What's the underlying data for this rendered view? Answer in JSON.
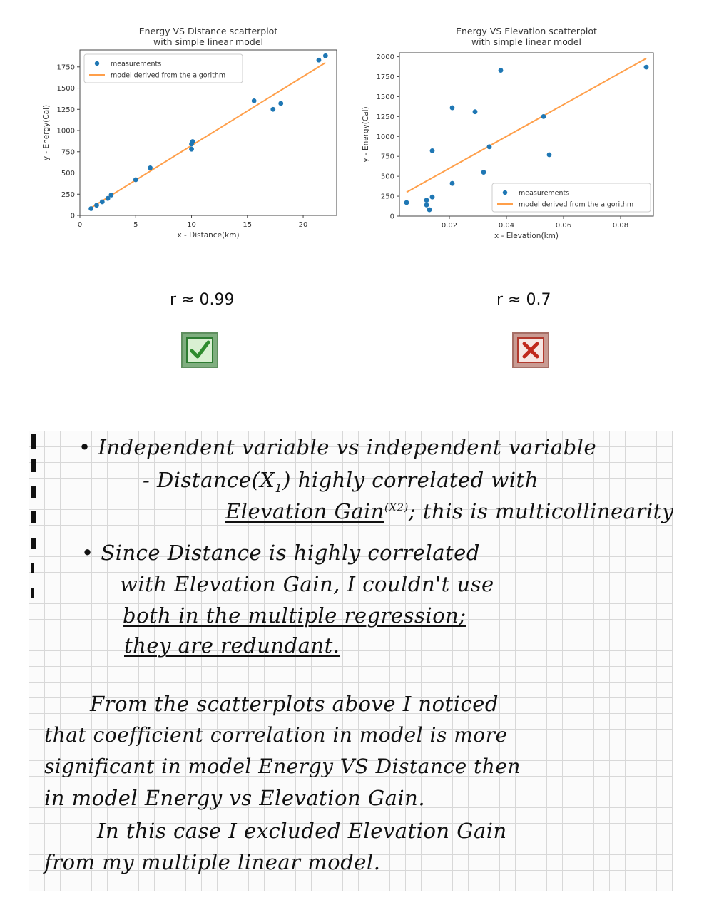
{
  "chart_data": [
    {
      "type": "scatter",
      "title": "Energy VS Distance scatterplot\nwith simple linear model",
      "title_lines": [
        "Energy VS Distance scatterplot",
        "with simple linear model"
      ],
      "xlabel": "x - Distance(km)",
      "ylabel": "y - Energy(Cal)",
      "xlim": [
        0,
        23
      ],
      "ylim": [
        0,
        1950
      ],
      "xticks": [
        0,
        5,
        10,
        15,
        20
      ],
      "yticks": [
        0,
        250,
        500,
        750,
        1000,
        1250,
        1500,
        1750
      ],
      "legend_position": "top-left",
      "series": [
        {
          "name": "measurements",
          "kind": "scatter",
          "color": "#1f77b4",
          "x": [
            1.0,
            1.5,
            2.0,
            2.5,
            2.8,
            5.0,
            6.3,
            10.0,
            10.0,
            10.1,
            15.6,
            17.3,
            18.0,
            21.4,
            22.0
          ],
          "y": [
            80,
            120,
            160,
            200,
            240,
            420,
            560,
            780,
            840,
            870,
            1350,
            1250,
            1320,
            1830,
            1880
          ]
        },
        {
          "name": "model derived from the algorithm",
          "kind": "line",
          "color": "#ff9f4a",
          "x": [
            1.0,
            22.0
          ],
          "y": [
            90,
            1800
          ]
        }
      ]
    },
    {
      "type": "scatter",
      "title": "Energy VS Elevation scatterplot\nwith simple linear model",
      "title_lines": [
        "Energy VS Elevation scatterplot",
        "with simple linear model"
      ],
      "xlabel": "x - Elevation(km)",
      "ylabel": "y - Energy(Cal)",
      "xlim": [
        0.0025,
        0.0915
      ],
      "ylim": [
        0,
        2050
      ],
      "xticks": [
        0.02,
        0.04,
        0.06,
        0.08
      ],
      "xtick_labels": [
        "0.02",
        "0.04",
        "0.06",
        "0.08"
      ],
      "yticks": [
        0,
        250,
        500,
        750,
        1000,
        1250,
        1500,
        1750,
        2000
      ],
      "legend_position": "bottom-right",
      "series": [
        {
          "name": "measurements",
          "kind": "scatter",
          "color": "#1f77b4",
          "x": [
            0.005,
            0.012,
            0.012,
            0.013,
            0.014,
            0.014,
            0.021,
            0.021,
            0.029,
            0.032,
            0.034,
            0.038,
            0.053,
            0.055,
            0.089
          ],
          "y": [
            170,
            200,
            140,
            80,
            240,
            820,
            1360,
            410,
            1310,
            550,
            870,
            1830,
            1250,
            770,
            1870
          ]
        },
        {
          "name": "model derived from the algorithm",
          "kind": "line",
          "color": "#ff9f4a",
          "x": [
            0.005,
            0.089
          ],
          "y": [
            300,
            1980
          ]
        }
      ]
    }
  ],
  "correlation": {
    "left": "r ≈ 0.99",
    "right": "r  ≈ 0.7"
  },
  "badges": {
    "left_icon": "green-checkmark-icon",
    "right_icon": "red-cross-icon"
  },
  "notes": {
    "line1": "• Independent variable vs independent variable",
    "line2_a": "- Distance(X",
    "line2_sub": "1",
    "line2_b": ") highly correlated with",
    "line3_a": "Elevation Gain",
    "line3_sup": "(X2)",
    "line3_b": "; this is multicollinearity",
    "line4": "• Since Distance is highly correlated",
    "line5": "with Elevation Gain, I couldn't use",
    "line6": "both in the multiple regression;",
    "line7": "they are redundant.",
    "line8": "From the scatterplots above I noticed",
    "line9": "that coefficient correlation in model is more",
    "line10": "significant in model Energy VS Distance then",
    "line11": "in model Energy vs Elevation Gain.",
    "line12": "In this case I excluded Elevation Gain",
    "line13": "from my multiple linear model."
  }
}
